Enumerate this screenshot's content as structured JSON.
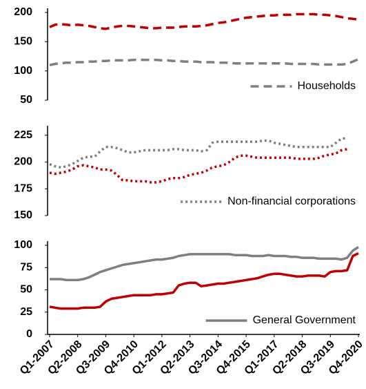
{
  "chart_data": [
    {
      "type": "line",
      "line_style": "dashed",
      "legend": "lower right",
      "ylim": [
        50,
        200
      ],
      "yticks": [
        50,
        100,
        150,
        200
      ],
      "series": [
        {
          "color": "#c00000",
          "values": [
            175,
            179,
            180,
            179,
            178,
            179,
            178,
            177,
            175,
            173,
            172,
            174,
            176,
            177,
            177,
            176,
            175,
            174,
            173,
            173,
            174,
            174,
            174,
            175,
            176,
            176,
            176,
            177,
            178,
            180,
            182,
            183,
            185,
            187,
            189,
            191,
            192,
            193,
            194,
            195,
            195,
            196,
            196,
            196,
            197,
            197,
            197,
            197,
            196,
            196,
            195,
            194,
            192,
            190,
            189,
            188
          ]
        },
        {
          "name": "Households",
          "color": "#7f7f7f",
          "values": [
            110,
            112,
            113,
            114,
            114,
            115,
            115,
            116,
            116,
            117,
            117,
            118,
            118,
            118,
            118,
            119,
            119,
            119,
            119,
            119,
            118,
            118,
            117,
            117,
            116,
            116,
            116,
            115,
            115,
            115,
            114,
            114,
            114,
            113,
            113,
            113,
            113,
            113,
            113,
            113,
            113,
            113,
            113,
            112,
            112,
            112,
            112,
            112,
            111,
            111,
            111,
            111,
            111,
            112,
            116,
            120
          ]
        }
      ]
    },
    {
      "type": "line",
      "line_style": "dotted",
      "legend": "lower right",
      "ylim": [
        150,
        230
      ],
      "yticks": [
        150,
        175,
        200,
        225
      ],
      "series": [
        {
          "color": "#c00000",
          "values": [
            190,
            189,
            190,
            191,
            193,
            196,
            197,
            196,
            195,
            193,
            193,
            192,
            188,
            183,
            183,
            182,
            182,
            182,
            181,
            181,
            182,
            184,
            185,
            185,
            186,
            188,
            189,
            190,
            192,
            195,
            196,
            197,
            200,
            204,
            206,
            206,
            205,
            204,
            204,
            204,
            204,
            204,
            204,
            204,
            203,
            203,
            203,
            203,
            204,
            206,
            207,
            208,
            211,
            212,
            null,
            null
          ]
        },
        {
          "name": "Non-financial corporations",
          "color": "#7f7f7f",
          "values": [
            198,
            196,
            195,
            196,
            198,
            201,
            204,
            205,
            205,
            210,
            214,
            214,
            213,
            211,
            209,
            209,
            210,
            211,
            211,
            211,
            211,
            211,
            212,
            212,
            211,
            211,
            211,
            210,
            211,
            218,
            219,
            219,
            219,
            219,
            219,
            219,
            219,
            219,
            220,
            220,
            218,
            217,
            216,
            215,
            214,
            214,
            214,
            214,
            214,
            214,
            214,
            218,
            222,
            222,
            null,
            null
          ]
        }
      ]
    },
    {
      "type": "line",
      "line_style": "solid",
      "legend": "lower right",
      "ylim": [
        0,
        100
      ],
      "yticks": [
        0,
        25,
        50,
        75,
        100
      ],
      "categories": [
        "Q1-2007",
        null,
        null,
        null,
        null,
        "Q2-2008",
        null,
        null,
        null,
        null,
        "Q3-2009",
        null,
        null,
        null,
        null,
        "Q4-2010",
        null,
        null,
        null,
        null,
        "Q1-2012",
        null,
        null,
        null,
        null,
        "Q2-2013",
        null,
        null,
        null,
        null,
        "Q3-2014",
        null,
        null,
        null,
        null,
        "Q4-2015",
        null,
        null,
        null,
        null,
        "Q1-2017",
        null,
        null,
        null,
        null,
        "Q2-2018",
        null,
        null,
        null,
        null,
        "Q3-2019",
        null,
        null,
        null,
        null,
        "Q4-2020"
      ],
      "series": [
        {
          "color": "#c00000",
          "values": [
            31,
            30,
            29,
            29,
            29,
            29,
            30,
            30,
            30,
            31,
            37,
            40,
            41,
            42,
            43,
            44,
            44,
            44,
            44,
            45,
            45,
            46,
            47,
            55,
            57,
            58,
            58,
            54,
            55,
            56,
            57,
            57,
            58,
            59,
            60,
            61,
            62,
            63,
            65,
            67,
            68,
            68,
            67,
            66,
            65,
            65,
            66,
            66,
            66,
            65,
            70,
            71,
            71,
            72,
            88,
            91
          ]
        },
        {
          "name": "General Government",
          "color": "#7f7f7f",
          "values": [
            62,
            62,
            62,
            61,
            61,
            61,
            62,
            64,
            67,
            70,
            72,
            74,
            76,
            78,
            79,
            80,
            81,
            82,
            83,
            84,
            84,
            85,
            86,
            88,
            89,
            90,
            90,
            90,
            90,
            90,
            90,
            90,
            90,
            89,
            89,
            89,
            88,
            88,
            88,
            89,
            88,
            88,
            88,
            87,
            87,
            86,
            86,
            86,
            85,
            85,
            85,
            85,
            84,
            86,
            94,
            98
          ]
        }
      ]
    }
  ]
}
